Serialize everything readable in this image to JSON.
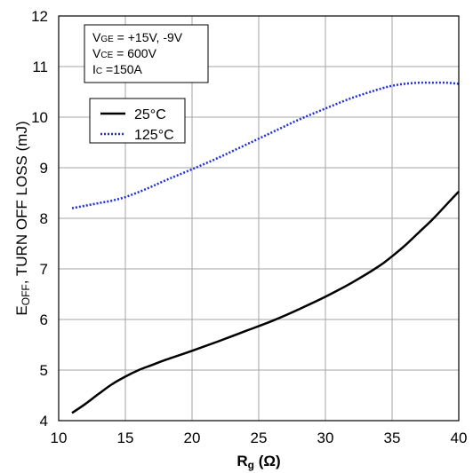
{
  "chart_data": {
    "type": "line",
    "xlabel_main": "R",
    "xlabel_sub": "g",
    "xlabel_unit": " (Ω)",
    "ylabel_main": "E",
    "ylabel_sub": "OFF",
    "ylabel_rest": ", TURN OFF LOSS (mJ)",
    "xlim": [
      10,
      40
    ],
    "ylim": [
      4,
      12
    ],
    "x_ticks": [
      "10",
      "15",
      "20",
      "25",
      "30",
      "35",
      "40"
    ],
    "y_ticks": [
      "4",
      "5",
      "6",
      "7",
      "8",
      "9",
      "10",
      "11",
      "12"
    ],
    "grid": true,
    "legend_position": "top-left",
    "conditions": [
      {
        "main": "V",
        "sub": "GE",
        "value": " = +15V, -9V"
      },
      {
        "main": "V",
        "sub": "CE",
        "value": " = 600V"
      },
      {
        "main": "I",
        "sub": "C",
        "value": " =150A"
      }
    ],
    "series": [
      {
        "name": "25°C",
        "color": "#000000",
        "style": "solid",
        "x": [
          11,
          12,
          13,
          14,
          15,
          16,
          17,
          18,
          20,
          22,
          24,
          26,
          28,
          30,
          32,
          34,
          35,
          36,
          37,
          38,
          39,
          40
        ],
        "y": [
          4.15,
          4.33,
          4.53,
          4.72,
          4.87,
          5.0,
          5.1,
          5.2,
          5.38,
          5.57,
          5.77,
          5.97,
          6.2,
          6.45,
          6.73,
          7.05,
          7.25,
          7.47,
          7.72,
          7.97,
          8.25,
          8.53
        ]
      },
      {
        "name": "125°C",
        "color": "#1f2fd6",
        "style": "dotted",
        "x": [
          11,
          12,
          13,
          14,
          15,
          16,
          17,
          18,
          20,
          22,
          24,
          26,
          28,
          30,
          32,
          34,
          35,
          36,
          37,
          38,
          39,
          40
        ],
        "y": [
          8.2,
          8.25,
          8.3,
          8.35,
          8.42,
          8.52,
          8.63,
          8.75,
          8.97,
          9.2,
          9.45,
          9.7,
          9.95,
          10.17,
          10.38,
          10.55,
          10.62,
          10.66,
          10.68,
          10.68,
          10.68,
          10.66
        ]
      }
    ]
  }
}
